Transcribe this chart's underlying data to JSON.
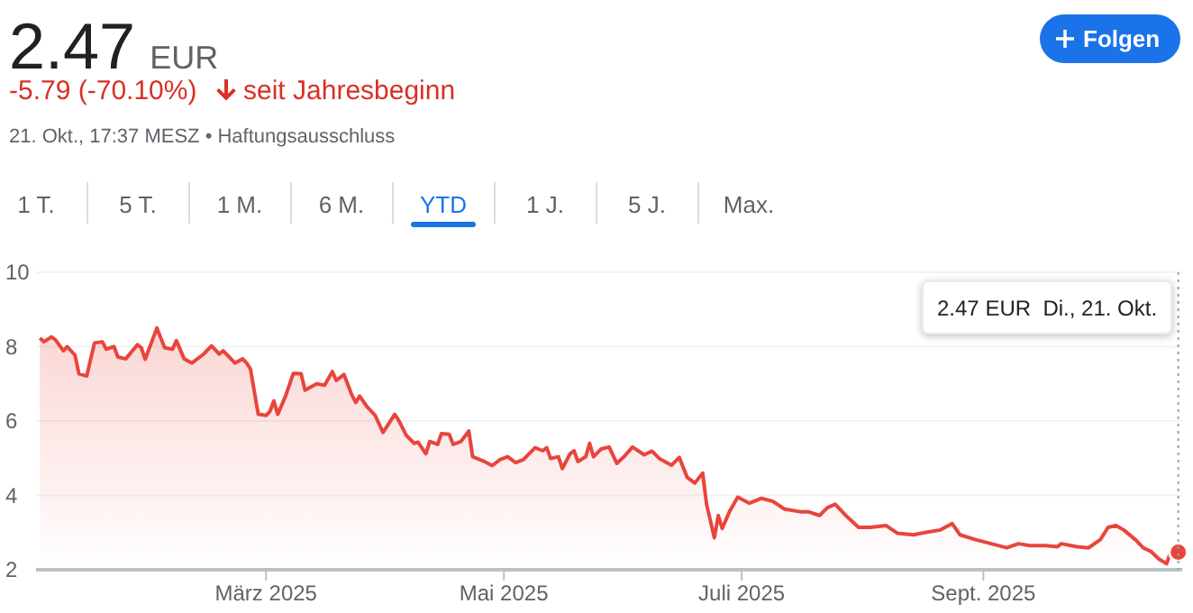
{
  "chart_data": {
    "type": "area",
    "title": "2.47 EUR",
    "subtitle": "-5.79 (-70.10%)",
    "annotations": [
      "seit Jahresbeginn",
      "21. Okt., 17:37 MESZ • Haftungsausschluss",
      "Folgen",
      "1 T.",
      "5 T.",
      "1 M.",
      "6 M.",
      "YTD",
      "1 J.",
      "5 J.",
      "Max.",
      "2.47 EUR  Di., 21. Okt."
    ],
    "x": [
      "2025-01-02",
      "2025-01-03",
      "2025-01-05",
      "2025-01-06",
      "2025-01-08",
      "2025-01-09",
      "2025-01-11",
      "2025-01-12",
      "2025-01-14",
      "2025-01-16",
      "2025-01-18",
      "2025-01-19",
      "2025-01-21",
      "2025-01-22",
      "2025-01-24",
      "2025-01-27",
      "2025-01-28",
      "2025-01-29",
      "2025-02-01",
      "2025-02-03",
      "2025-02-05",
      "2025-02-06",
      "2025-02-08",
      "2025-02-10",
      "2025-02-13",
      "2025-02-15",
      "2025-02-17",
      "2025-02-18",
      "2025-02-21",
      "2025-02-23",
      "2025-02-24",
      "2025-02-25",
      "2025-02-27",
      "2025-03-01",
      "2025-03-02",
      "2025-03-03",
      "2025-03-04",
      "2025-03-06",
      "2025-03-08",
      "2025-03-10",
      "2025-03-11",
      "2025-03-14",
      "2025-03-16",
      "2025-03-18",
      "2025-03-19",
      "2025-03-21",
      "2025-03-23",
      "2025-03-24",
      "2025-03-25",
      "2025-03-27",
      "2025-03-29",
      "2025-03-31",
      "2025-04-03",
      "2025-04-04",
      "2025-04-06",
      "2025-04-08",
      "2025-04-09",
      "2025-04-11",
      "2025-04-12",
      "2025-04-14",
      "2025-04-15",
      "2025-04-17",
      "2025-04-18",
      "2025-04-20",
      "2025-04-22",
      "2025-04-23",
      "2025-04-26",
      "2025-04-28",
      "2025-04-30",
      "2025-05-02",
      "2025-05-04",
      "2025-05-06",
      "2025-05-09",
      "2025-05-11",
      "2025-05-12",
      "2025-05-13",
      "2025-05-15",
      "2025-05-16",
      "2025-05-18",
      "2025-05-19",
      "2025-05-20",
      "2025-05-22",
      "2025-05-23",
      "2025-05-24",
      "2025-05-26",
      "2025-05-28",
      "2025-05-30",
      "2025-06-01",
      "2025-06-03",
      "2025-06-06",
      "2025-06-08",
      "2025-06-10",
      "2025-06-13",
      "2025-06-15",
      "2025-06-17",
      "2025-06-19",
      "2025-06-21",
      "2025-06-22",
      "2025-06-24",
      "2025-06-25",
      "2025-06-26",
      "2025-06-28",
      "2025-06-30",
      "2025-07-03",
      "2025-07-06",
      "2025-07-09",
      "2025-07-12",
      "2025-07-16",
      "2025-07-18",
      "2025-07-21",
      "2025-07-23",
      "2025-07-25",
      "2025-07-28",
      "2025-07-31",
      "2025-08-03",
      "2025-08-07",
      "2025-08-10",
      "2025-08-14",
      "2025-08-18",
      "2025-08-21",
      "2025-08-24",
      "2025-08-26",
      "2025-08-30",
      "2025-09-03",
      "2025-09-07",
      "2025-09-10",
      "2025-09-13",
      "2025-09-17",
      "2025-09-20",
      "2025-09-21",
      "2025-09-25",
      "2025-09-28",
      "2025-10-01",
      "2025-10-03",
      "2025-10-05",
      "2025-10-07",
      "2025-10-10",
      "2025-10-12",
      "2025-10-14",
      "2025-10-16",
      "2025-10-18",
      "2025-10-19",
      "2025-10-21"
    ],
    "series": [
      {
        "color": "#e8453c",
        "values": [
          8.23,
          8.13,
          8.26,
          8.18,
          7.89,
          8.0,
          7.77,
          7.27,
          7.21,
          8.1,
          8.13,
          7.93,
          8.0,
          7.72,
          7.67,
          8.05,
          7.97,
          7.66,
          8.5,
          7.97,
          7.93,
          8.16,
          7.67,
          7.56,
          7.8,
          8.02,
          7.8,
          7.89,
          7.56,
          7.67,
          7.56,
          7.4,
          6.18,
          6.15,
          6.26,
          6.54,
          6.18,
          6.67,
          7.28,
          7.27,
          6.83,
          7.0,
          6.96,
          7.33,
          7.09,
          7.25,
          6.7,
          6.5,
          6.67,
          6.37,
          6.15,
          5.69,
          6.18,
          6.02,
          5.61,
          5.4,
          5.43,
          5.12,
          5.45,
          5.37,
          5.66,
          5.64,
          5.37,
          5.45,
          5.73,
          5.04,
          4.91,
          4.8,
          4.96,
          5.04,
          4.88,
          4.96,
          5.28,
          5.2,
          5.28,
          4.99,
          5.04,
          4.72,
          5.12,
          5.2,
          4.91,
          5.04,
          5.4,
          5.04,
          5.25,
          5.3,
          4.86,
          5.06,
          5.3,
          5.09,
          5.19,
          4.98,
          4.81,
          5.02,
          4.49,
          4.33,
          4.6,
          3.76,
          2.86,
          3.46,
          3.11,
          3.59,
          3.95,
          3.79,
          3.92,
          3.84,
          3.63,
          3.56,
          3.56,
          3.46,
          3.67,
          3.76,
          3.43,
          3.14,
          3.14,
          3.19,
          2.98,
          2.94,
          3.02,
          3.07,
          3.24,
          2.94,
          2.81,
          2.7,
          2.59,
          2.7,
          2.65,
          2.65,
          2.62,
          2.7,
          2.62,
          2.59,
          2.81,
          3.14,
          3.19,
          3.07,
          2.81,
          2.59,
          2.49,
          2.29,
          2.16,
          2.46,
          2.47
        ]
      }
    ],
    "xlim": [
      "2025-01-01",
      "2025-10-22"
    ],
    "xticks": [
      {
        "value": "2025-03-01",
        "label": "März 2025"
      },
      {
        "value": "2025-05-01",
        "label": "Mai 2025"
      },
      {
        "value": "2025-07-01",
        "label": "Juli 2025"
      },
      {
        "value": "2025-09-01",
        "label": "Sept. 2025"
      }
    ],
    "ylim": [
      2,
      10
    ],
    "yticks": [
      2,
      4,
      6,
      8,
      10
    ],
    "grid": "y",
    "ref_lines": [
      {
        "axis": "x",
        "value": "2025-10-21",
        "line_style": "dotted",
        "color": "#9aa0a6"
      }
    ]
  }
}
